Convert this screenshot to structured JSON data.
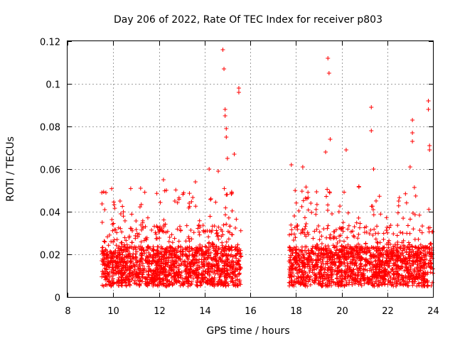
{
  "chart_data": {
    "type": "scatter",
    "title": "Day 206 of 2022, Rate Of TEC Index for receiver p803",
    "xlabel": "GPS time / hours",
    "ylabel": "ROTI / TECUs",
    "xlim": [
      8,
      24
    ],
    "ylim": [
      0,
      0.12
    ],
    "xticks": [
      8,
      10,
      12,
      14,
      16,
      18,
      20,
      22,
      24
    ],
    "xtick_labels": [
      "8",
      "10",
      "12",
      "14",
      "16",
      "18",
      "20",
      "22",
      "24"
    ],
    "yticks": [
      0,
      0.02,
      0.04,
      0.06,
      0.08,
      0.1,
      0.12
    ],
    "ytick_labels": [
      "0",
      "0.02",
      "0.04",
      "0.06",
      "0.08",
      "0.1",
      "0.12"
    ],
    "grid": true,
    "marker": "+",
    "color": "#ff0000",
    "series": [
      {
        "name": "ROTI",
        "segments": [
          {
            "start": 9.5,
            "end": 15.6
          },
          {
            "start": 17.7,
            "end": 24.0
          }
        ],
        "typical_range": [
          0.005,
          0.03
        ],
        "notable_points": [
          {
            "x": 9.5,
            "y": 0.049
          },
          {
            "x": 10.3,
            "y": 0.045
          },
          {
            "x": 11.2,
            "y": 0.051
          },
          {
            "x": 12.2,
            "y": 0.055
          },
          {
            "x": 13.6,
            "y": 0.054
          },
          {
            "x": 14.2,
            "y": 0.06
          },
          {
            "x": 14.6,
            "y": 0.059
          },
          {
            "x": 14.8,
            "y": 0.116
          },
          {
            "x": 14.85,
            "y": 0.107
          },
          {
            "x": 14.9,
            "y": 0.088
          },
          {
            "x": 14.9,
            "y": 0.085
          },
          {
            "x": 14.95,
            "y": 0.079
          },
          {
            "x": 14.95,
            "y": 0.075
          },
          {
            "x": 15.0,
            "y": 0.065
          },
          {
            "x": 15.3,
            "y": 0.067
          },
          {
            "x": 15.5,
            "y": 0.098
          },
          {
            "x": 15.5,
            "y": 0.096
          },
          {
            "x": 17.8,
            "y": 0.062
          },
          {
            "x": 18.3,
            "y": 0.061
          },
          {
            "x": 19.3,
            "y": 0.068
          },
          {
            "x": 19.4,
            "y": 0.112
          },
          {
            "x": 19.45,
            "y": 0.105
          },
          {
            "x": 19.5,
            "y": 0.074
          },
          {
            "x": 20.2,
            "y": 0.069
          },
          {
            "x": 21.3,
            "y": 0.089
          },
          {
            "x": 21.3,
            "y": 0.078
          },
          {
            "x": 21.4,
            "y": 0.06
          },
          {
            "x": 22.5,
            "y": 0.045
          },
          {
            "x": 23.0,
            "y": 0.061
          },
          {
            "x": 23.1,
            "y": 0.083
          },
          {
            "x": 23.1,
            "y": 0.077
          },
          {
            "x": 23.1,
            "y": 0.073
          },
          {
            "x": 23.8,
            "y": 0.092
          },
          {
            "x": 23.8,
            "y": 0.088
          },
          {
            "x": 23.85,
            "y": 0.071
          },
          {
            "x": 23.85,
            "y": 0.069
          }
        ]
      }
    ]
  }
}
